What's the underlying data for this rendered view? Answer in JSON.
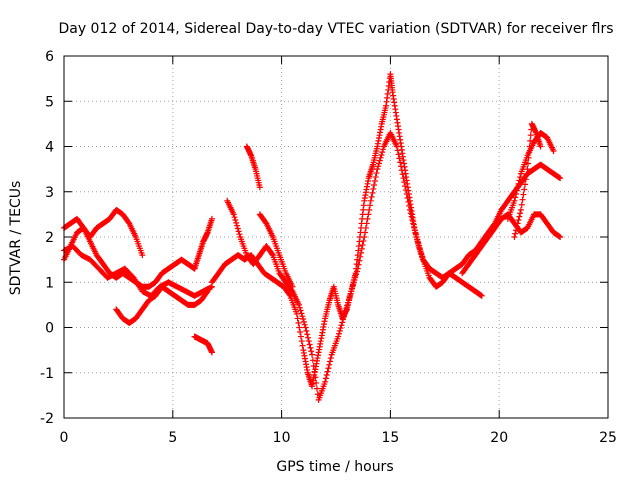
{
  "chart_data": {
    "type": "scatter",
    "title": "Day 012 of 2014, Sidereal Day-to-day VTEC variation (SDTVAR) for receiver flrs",
    "xlabel": "GPS time / hours",
    "ylabel": "SDTVAR / TECUs",
    "xlim": [
      0,
      25
    ],
    "ylim": [
      -2,
      6
    ],
    "xticks": [
      0,
      5,
      10,
      15,
      20,
      25
    ],
    "yticks": [
      -2,
      -1,
      0,
      1,
      2,
      3,
      4,
      5,
      6
    ],
    "grid": true,
    "marker": "+",
    "color": "#ff0000",
    "series": [
      {
        "name": "s1",
        "x": [
          0,
          0.3,
          0.6,
          0.9,
          1.2,
          1.5,
          1.8,
          2.1,
          2.4,
          2.7,
          3.0,
          3.3,
          3.6
        ],
        "y": [
          2.2,
          2.3,
          2.4,
          2.2,
          2.0,
          2.2,
          2.3,
          2.4,
          2.6,
          2.5,
          2.3,
          2.0,
          1.6
        ]
      },
      {
        "name": "s2",
        "x": [
          0,
          0.3,
          0.6,
          0.9,
          1.2,
          1.5,
          1.8,
          2.1,
          2.4,
          2.7,
          3.0,
          3.3,
          3.6,
          3.9,
          4.2,
          4.5,
          4.8,
          5.1,
          5.4,
          5.7,
          6.0
        ],
        "y": [
          1.5,
          1.8,
          2.1,
          2.2,
          1.9,
          1.6,
          1.4,
          1.2,
          1.1,
          1.2,
          1.1,
          1.0,
          0.9,
          0.9,
          1.0,
          1.2,
          1.3,
          1.4,
          1.5,
          1.4,
          1.3
        ]
      },
      {
        "name": "s3",
        "x": [
          0,
          0.4,
          0.8,
          1.2,
          1.6,
          2.0,
          2.4,
          2.8,
          3.2,
          3.6,
          4.0,
          4.4,
          4.8,
          5.2,
          5.6,
          6.0,
          6.4,
          6.8
        ],
        "y": [
          1.7,
          1.8,
          1.6,
          1.5,
          1.3,
          1.1,
          1.2,
          1.3,
          1.1,
          0.8,
          0.7,
          0.9,
          1.0,
          0.9,
          0.8,
          0.7,
          0.8,
          0.9
        ]
      },
      {
        "name": "s4",
        "x": [
          2.4,
          2.7,
          3.0,
          3.3,
          3.6,
          3.9,
          4.2,
          4.5,
          4.8,
          5.1,
          5.4,
          5.7,
          6.0,
          6.3,
          6.6
        ],
        "y": [
          0.4,
          0.2,
          0.1,
          0.2,
          0.4,
          0.6,
          0.7,
          0.9,
          0.8,
          0.7,
          0.6,
          0.5,
          0.5,
          0.6,
          0.8
        ]
      },
      {
        "name": "s5",
        "x": [
          6.0,
          6.2,
          6.4,
          6.6,
          6.8
        ],
        "y": [
          1.3,
          1.6,
          1.9,
          2.1,
          2.4
        ]
      },
      {
        "name": "s6",
        "x": [
          6.0,
          6.2,
          6.4,
          6.6,
          6.8
        ],
        "y": [
          -0.2,
          -0.25,
          -0.3,
          -0.35,
          -0.55
        ]
      },
      {
        "name": "s7",
        "x": [
          6.8,
          7.1,
          7.4,
          7.7,
          8.0,
          8.3,
          8.6,
          8.9,
          9.2,
          9.5,
          9.8,
          10.1,
          10.4,
          10.7,
          11.0,
          11.2,
          11.4,
          11.6,
          11.8,
          12.0,
          12.2,
          12.4,
          12.6,
          12.8,
          13.0,
          13.2,
          13.4,
          13.6,
          13.8,
          14.0,
          14.2,
          14.4,
          14.6,
          14.8,
          15.0,
          15.1,
          15.3,
          15.5,
          15.7,
          15.9,
          16.1,
          16.3,
          16.5,
          16.8,
          17.1,
          17.4,
          17.7,
          18.0,
          18.3,
          18.6,
          18.9,
          19.2,
          19.5,
          19.8,
          20.1,
          20.4,
          20.7,
          21.0,
          21.3,
          21.6,
          21.9,
          22.2,
          22.5,
          22.8
        ],
        "y": [
          1.0,
          1.2,
          1.4,
          1.5,
          1.6,
          1.5,
          1.6,
          1.4,
          1.2,
          1.1,
          1.0,
          0.9,
          0.7,
          0.3,
          -0.5,
          -1.0,
          -1.3,
          -0.8,
          -0.3,
          0.2,
          0.6,
          0.9,
          0.5,
          0.2,
          0.4,
          0.8,
          1.2,
          2.0,
          2.8,
          3.3,
          3.6,
          4.0,
          4.5,
          4.9,
          5.6,
          5.2,
          4.6,
          4.0,
          3.4,
          2.8,
          2.2,
          1.8,
          1.5,
          1.3,
          1.2,
          1.1,
          1.2,
          1.3,
          1.4,
          1.6,
          1.7,
          1.9,
          2.1,
          2.3,
          2.6,
          2.8,
          3.0,
          3.2,
          3.4,
          3.5,
          3.6,
          3.5,
          3.4,
          3.3
        ]
      },
      {
        "name": "s8",
        "x": [
          7.5,
          7.8,
          8.1,
          8.4,
          8.7,
          9.0,
          9.3,
          9.6,
          9.9,
          10.2,
          10.5,
          10.8,
          11.1,
          11.4,
          11.7,
          12.0,
          12.3,
          12.6,
          12.9,
          13.2,
          13.5,
          13.8,
          14.1,
          14.4,
          14.7,
          15.0,
          15.3,
          15.6,
          15.9,
          16.2,
          16.5,
          16.8,
          17.1,
          17.4,
          17.7,
          18.0,
          18.3,
          18.6,
          18.9,
          19.2
        ],
        "y": [
          2.8,
          2.5,
          2.0,
          1.6,
          1.4,
          1.6,
          1.8,
          1.6,
          1.2,
          1.0,
          0.8,
          0.5,
          0.0,
          -0.6,
          -1.6,
          -1.2,
          -0.6,
          -0.2,
          0.3,
          0.8,
          1.3,
          2.0,
          2.8,
          3.5,
          4.0,
          4.3,
          4.0,
          3.3,
          2.6,
          2.0,
          1.5,
          1.1,
          0.9,
          1.0,
          1.2,
          1.1,
          1.0,
          0.9,
          0.8,
          0.7
        ]
      },
      {
        "name": "s9",
        "x": [
          8.4,
          8.6,
          8.8,
          9.0
        ],
        "y": [
          4.0,
          3.8,
          3.5,
          3.1
        ]
      },
      {
        "name": "s10",
        "x": [
          9.0,
          9.3,
          9.6,
          9.9,
          10.2,
          10.5
        ],
        "y": [
          2.5,
          2.3,
          2.0,
          1.6,
          1.2,
          0.9
        ]
      },
      {
        "name": "s11",
        "x": [
          18.3,
          18.6,
          18.9,
          19.2,
          19.5,
          19.8,
          20.1,
          20.4,
          20.7,
          21.0,
          21.3,
          21.6,
          21.9,
          22.2,
          22.5,
          22.8
        ],
        "y": [
          1.2,
          1.4,
          1.6,
          1.8,
          2.0,
          2.2,
          2.4,
          2.5,
          2.3,
          2.1,
          2.2,
          2.5,
          2.5,
          2.3,
          2.1,
          2.0
        ]
      },
      {
        "name": "s12",
        "x": [
          20.4,
          20.7,
          21.0,
          21.3,
          21.6,
          21.9,
          22.2,
          22.5
        ],
        "y": [
          2.4,
          2.8,
          3.4,
          3.8,
          4.1,
          4.3,
          4.2,
          3.9
        ]
      },
      {
        "name": "s13",
        "x": [
          20.7,
          21.0,
          21.3,
          21.5,
          21.7,
          21.9
        ],
        "y": [
          2.0,
          2.6,
          3.5,
          4.5,
          4.3,
          4.0
        ]
      }
    ]
  }
}
